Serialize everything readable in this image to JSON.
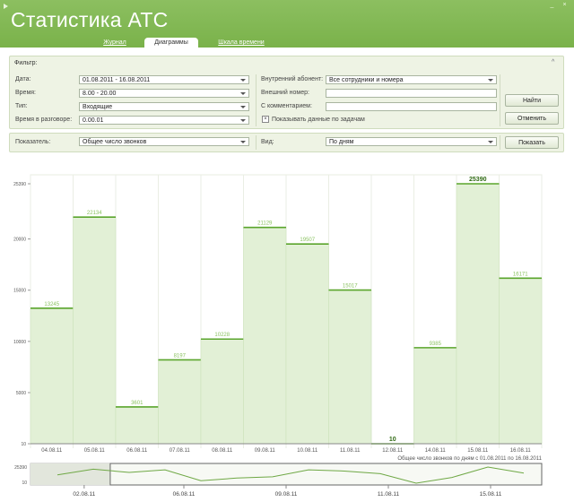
{
  "app": {
    "title": "Статистика АТС"
  },
  "window": {
    "minimize": "_",
    "close": "×"
  },
  "tabs": [
    {
      "label": "Журнал",
      "active": false
    },
    {
      "label": "Диаграммы",
      "active": true
    },
    {
      "label": "Шкала времени",
      "active": false
    }
  ],
  "filter": {
    "title": "Фильтр:",
    "collapse_glyph": "^",
    "date_label": "Дата:",
    "date_value": "01.08.2011 - 16.08.2011",
    "time_label": "Время:",
    "time_value": "8.00 - 20.00",
    "type_label": "Тип:",
    "type_value": "Входящие",
    "talk_time_label": "Время в разговоре:",
    "talk_time_value": "0.00.01",
    "internal_subscriber_label": "Внутренний абонент:",
    "internal_subscriber_value": "Все сотрудники и номера",
    "external_number_label": "Внешний номер:",
    "external_number_value": "",
    "comment_label": "С комментарием:",
    "comment_value": "",
    "show_tasks_label": "Показывать данные  по задачам",
    "show_tasks_checked": true,
    "find_button": "Найти",
    "cancel_button": "Отменить"
  },
  "indicator": {
    "label": "Показатель:",
    "value": "Общее число звонков",
    "view_label": "Вид:",
    "view_value": "По дням",
    "show_button": "Показать"
  },
  "chart_data": {
    "type": "bar",
    "style": "step-area",
    "categories": [
      "04.08.11",
      "05.08.11",
      "06.08.11",
      "07.08.11",
      "08.08.11",
      "09.08.11",
      "10.08.11",
      "11.08.11",
      "12.08.11",
      "14.08.11",
      "15.08.11",
      "16.08.11"
    ],
    "values": [
      13245,
      22134,
      3601,
      8197,
      10228,
      21129,
      19507,
      15017,
      10,
      9385,
      25390,
      16171
    ],
    "data_labels": [
      "13245",
      "22134",
      "3601",
      "8197",
      "10228",
      "21129",
      "19507",
      "15017",
      "10",
      "9385",
      "25390",
      "16171"
    ],
    "highlighted": [
      "10",
      "25390"
    ],
    "y_ticks": [
      "25390",
      "20000",
      "15000",
      "10000",
      "5000",
      "10"
    ],
    "ylim": [
      10,
      25390
    ],
    "grid": true,
    "caption": "Общее число звонков по дням с 01.08.2011 по 16.08.2011",
    "fill_color": "#e2f0d6",
    "line_color": "#5aa52c",
    "label_color": "#8cc363"
  },
  "navigator": {
    "y_ticks": [
      "25390",
      "10"
    ],
    "x_labels": [
      "02.08.11",
      "06.08.11",
      "09.08.11",
      "11.08.11",
      "15.08.11"
    ],
    "series": [
      13000,
      22000,
      17000,
      21000,
      4000,
      8000,
      10000,
      21000,
      19000,
      15000,
      10,
      9000,
      25390,
      16000
    ],
    "window_range": [
      0.156,
      1.0
    ]
  }
}
